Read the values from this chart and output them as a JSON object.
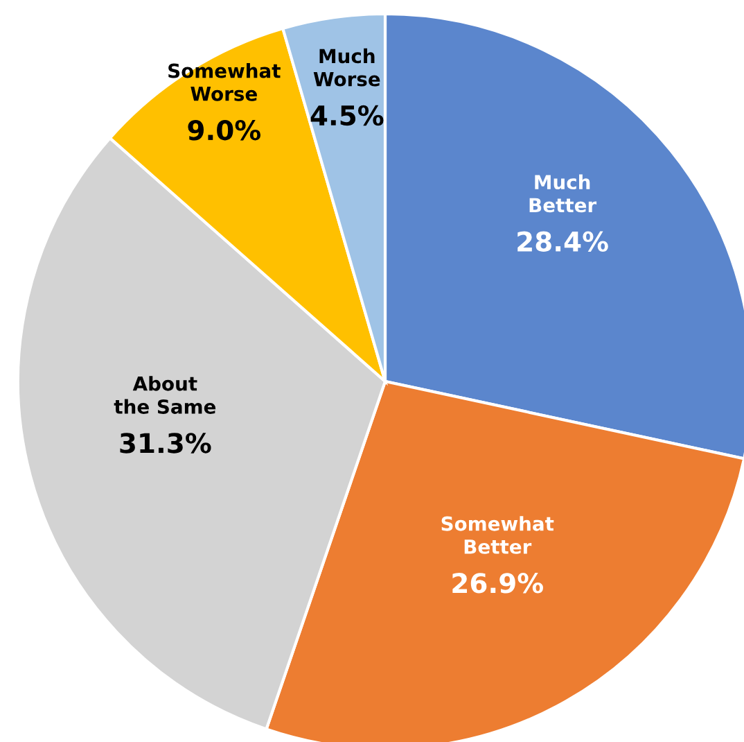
{
  "chart_data": {
    "type": "pie",
    "categories": [
      "Much Better",
      "Somewhat Better",
      "About the Same",
      "Somewhat Worse",
      "Much Worse"
    ],
    "values": [
      28.4,
      26.9,
      31.3,
      9.0,
      4.5
    ],
    "value_labels": [
      "28.4%",
      "26.9%",
      "31.3%",
      "9.0%",
      "4.5%"
    ],
    "colors": [
      "#5b86cd",
      "#ed7d31",
      "#d3d3d3",
      "#ffc000",
      "#9fc3e6"
    ]
  }
}
